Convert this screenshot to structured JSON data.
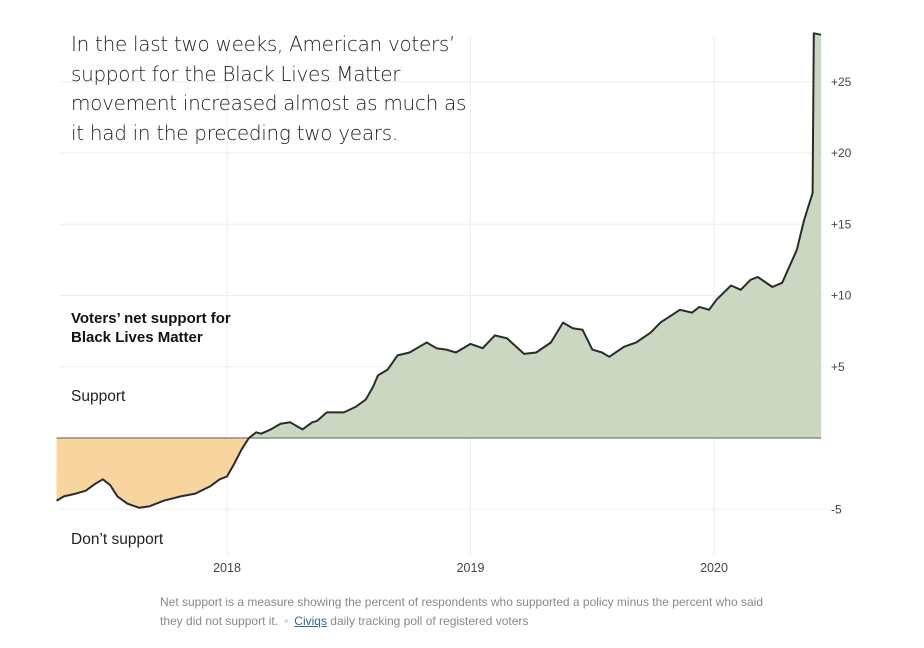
{
  "headline": "In the last two weeks, American voters’ support for the Black Lives Matter movement increased almost as much as it had in the preceding two years.",
  "footnote": {
    "text": "Net support is a measure showing the percent of respondents who supported a policy minus the percent who said they did not support it.",
    "source_link": "Civiqs",
    "source_text": "daily tracking poll of registered voters"
  },
  "chart_data": {
    "type": "area",
    "title": "Voters’ net support for Black Lives Matter",
    "positive_label": "Support",
    "negative_label": "Don’t support",
    "xlim": [
      2017.3,
      2020.44
    ],
    "ylim": [
      -7.8,
      28.5
    ],
    "grid": true,
    "x_ticks": [
      {
        "value": 2018,
        "label": "2018"
      },
      {
        "value": 2019,
        "label": "2019"
      },
      {
        "value": 2020,
        "label": "2020"
      }
    ],
    "y_ticks": [
      {
        "value": -5,
        "label": "-5"
      },
      {
        "value": 0,
        "label": ""
      },
      {
        "value": 5,
        "label": "+5"
      },
      {
        "value": 10,
        "label": "+10"
      },
      {
        "value": 15,
        "label": "+15"
      },
      {
        "value": 20,
        "label": "+20"
      },
      {
        "value": 25,
        "label": "+25"
      }
    ],
    "colors": {
      "positive_fill": "#cbd7c1",
      "negative_fill": "#f8d49f",
      "line": "#2b2b2b",
      "zero_line": "#777777",
      "grid": "#eeeeee"
    },
    "points": [
      [
        2017.3,
        -4.4
      ],
      [
        2017.33,
        -4.1
      ],
      [
        2017.38,
        -3.9
      ],
      [
        2017.42,
        -3.7
      ],
      [
        2017.46,
        -3.2
      ],
      [
        2017.49,
        -2.9
      ],
      [
        2017.52,
        -3.3
      ],
      [
        2017.55,
        -4.1
      ],
      [
        2017.59,
        -4.6
      ],
      [
        2017.64,
        -4.9
      ],
      [
        2017.68,
        -4.8
      ],
      [
        2017.74,
        -4.4
      ],
      [
        2017.81,
        -4.1
      ],
      [
        2017.87,
        -3.9
      ],
      [
        2017.93,
        -3.4
      ],
      [
        2017.97,
        -2.9
      ],
      [
        2018.0,
        -2.7
      ],
      [
        2018.03,
        -1.8
      ],
      [
        2018.06,
        -0.8
      ],
      [
        2018.09,
        0
      ],
      [
        2018.12,
        0.4
      ],
      [
        2018.14,
        0.3
      ],
      [
        2018.18,
        0.6
      ],
      [
        2018.22,
        1.0
      ],
      [
        2018.26,
        1.1
      ],
      [
        2018.29,
        0.8
      ],
      [
        2018.31,
        0.6
      ],
      [
        2018.35,
        1.1
      ],
      [
        2018.37,
        1.2
      ],
      [
        2018.41,
        1.8
      ],
      [
        2018.44,
        1.8
      ],
      [
        2018.48,
        1.8
      ],
      [
        2018.53,
        2.2
      ],
      [
        2018.57,
        2.7
      ],
      [
        2018.6,
        3.6
      ],
      [
        2018.62,
        4.4
      ],
      [
        2018.66,
        4.8
      ],
      [
        2018.7,
        5.8
      ],
      [
        2018.75,
        6.0
      ],
      [
        2018.78,
        6.3
      ],
      [
        2018.82,
        6.7
      ],
      [
        2018.86,
        6.3
      ],
      [
        2018.9,
        6.2
      ],
      [
        2018.94,
        6.0
      ],
      [
        2019.0,
        6.6
      ],
      [
        2019.05,
        6.3
      ],
      [
        2019.1,
        7.2
      ],
      [
        2019.15,
        7.0
      ],
      [
        2019.22,
        5.9
      ],
      [
        2019.27,
        6.0
      ],
      [
        2019.33,
        6.7
      ],
      [
        2019.38,
        8.1
      ],
      [
        2019.42,
        7.7
      ],
      [
        2019.46,
        7.6
      ],
      [
        2019.5,
        6.2
      ],
      [
        2019.54,
        6.0
      ],
      [
        2019.57,
        5.7
      ],
      [
        2019.63,
        6.4
      ],
      [
        2019.68,
        6.7
      ],
      [
        2019.74,
        7.4
      ],
      [
        2019.78,
        8.1
      ],
      [
        2019.86,
        9.0
      ],
      [
        2019.91,
        8.8
      ],
      [
        2019.94,
        9.2
      ],
      [
        2019.98,
        9.0
      ],
      [
        2020.01,
        9.7
      ],
      [
        2020.07,
        10.7
      ],
      [
        2020.11,
        10.4
      ],
      [
        2020.15,
        11.1
      ],
      [
        2020.18,
        11.3
      ],
      [
        2020.24,
        10.6
      ],
      [
        2020.28,
        10.9
      ],
      [
        2020.34,
        13.2
      ],
      [
        2020.37,
        15.3
      ],
      [
        2020.405,
        17.2
      ],
      [
        2020.41,
        28.4
      ],
      [
        2020.44,
        28.3
      ]
    ]
  }
}
